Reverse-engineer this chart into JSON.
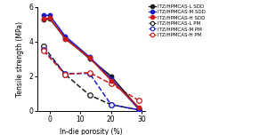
{
  "sdd_l_x": [
    -2,
    0,
    5,
    13,
    20,
    29
  ],
  "sdd_l_y": [
    5.25,
    5.3,
    4.2,
    3.0,
    2.0,
    0.15
  ],
  "sdd_m_x": [
    -2,
    0,
    5,
    13,
    20,
    29
  ],
  "sdd_m_y": [
    5.5,
    5.5,
    4.3,
    3.1,
    1.85,
    0.1
  ],
  "sdd_h_x": [
    -2,
    0,
    5,
    13,
    20,
    29
  ],
  "sdd_h_y": [
    5.3,
    5.35,
    4.15,
    3.05,
    1.75,
    0.2
  ],
  "pm_l_x": [
    -2,
    5,
    13,
    20,
    29
  ],
  "pm_l_y": [
    3.7,
    2.1,
    0.9,
    0.35,
    0.05
  ],
  "pm_m_x": [
    -2,
    5,
    13,
    20,
    29
  ],
  "pm_m_y": [
    3.5,
    2.15,
    2.15,
    0.35,
    0.05
  ],
  "pm_h_x": [
    -2,
    5,
    13,
    20,
    29
  ],
  "pm_h_y": [
    3.45,
    2.1,
    2.2,
    1.55,
    0.6
  ],
  "color_l": "#1a1a1a",
  "color_m": "#1a1acc",
  "color_h": "#cc1a1a",
  "xlabel": "In-die porosity (%)",
  "ylabel": "Tensile strength (MPa)",
  "xlim": [
    -4,
    31
  ],
  "ylim": [
    0,
    6
  ],
  "yticks": [
    0,
    2,
    4,
    6
  ],
  "xticks": [
    0,
    10,
    20,
    30
  ],
  "legend_labels": [
    "ITZ/HPMCAS-L SDD",
    "ITZ/HPMCAS-M SDD",
    "ITZ/HPMCAS-H SDD",
    "ITZ/HPMCAS-L PM",
    "ITZ/HPMCAS-M PM",
    "ITZ/HPMCAS-H PM"
  ]
}
